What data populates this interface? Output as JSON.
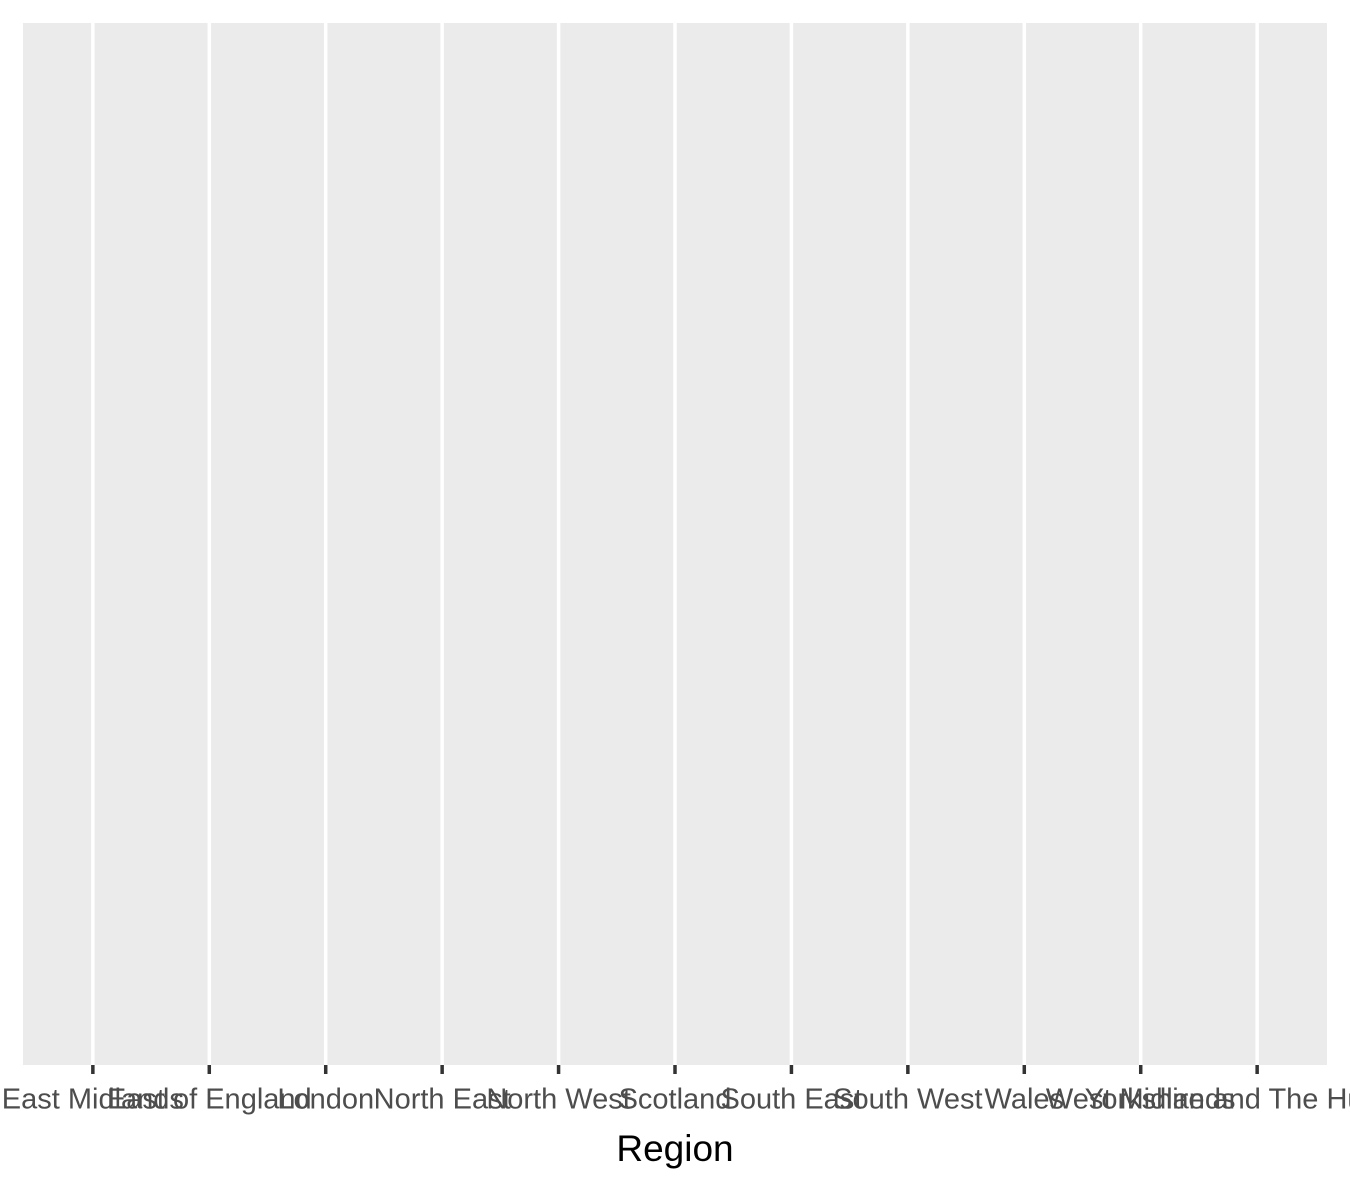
{
  "chart_data": {
    "type": "bar",
    "x_label": "Region",
    "categories": [
      "East Midlands",
      "East of England",
      "London",
      "North East",
      "North West",
      "Scotland",
      "South East",
      "South West",
      "Wales",
      "West Midlands",
      "Yorkshire and The Humber"
    ],
    "grid": true
  }
}
